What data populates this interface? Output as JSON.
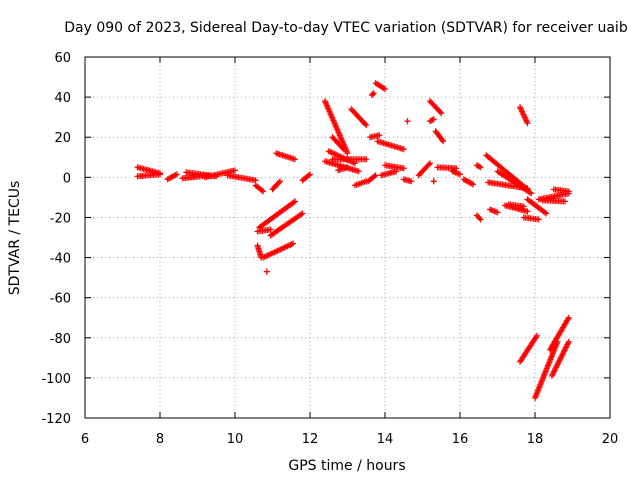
{
  "chart_data": {
    "type": "scatter",
    "title": "Day 090 of 2023, Sidereal Day-to-day VTEC variation (SDTVAR) for receiver uaib",
    "xlabel": "GPS time / hours",
    "ylabel": "SDTVAR / TECUs",
    "xlim": [
      6,
      20
    ],
    "ylim": [
      -120,
      60
    ],
    "xticks": [
      "6",
      "8",
      "10",
      "12",
      "14",
      "16",
      "18",
      "20"
    ],
    "yticks": [
      "60",
      "40",
      "20",
      "0",
      "-20",
      "-40",
      "-60",
      "-80",
      "-100",
      "-120"
    ],
    "grid": true,
    "marker": "+",
    "color": "#ff0000",
    "segments": [
      {
        "x": [
          7.4,
          8.0
        ],
        "y": [
          0.5,
          1.5
        ]
      },
      {
        "x": [
          7.4,
          8.0
        ],
        "y": [
          5.0,
          2.0
        ]
      },
      {
        "x": [
          8.2,
          8.45
        ],
        "y": [
          -1.0,
          1.5
        ]
      },
      {
        "x": [
          8.6,
          9.3
        ],
        "y": [
          -0.5,
          1.0
        ]
      },
      {
        "x": [
          8.7,
          9.5
        ],
        "y": [
          2.5,
          0.5
        ]
      },
      {
        "x": [
          9.2,
          10.0
        ],
        "y": [
          0.0,
          3.5
        ]
      },
      {
        "x": [
          9.8,
          10.55
        ],
        "y": [
          1.0,
          -1.5
        ]
      },
      {
        "x": [
          10.55,
          10.75
        ],
        "y": [
          -4.0,
          -7.0
        ]
      },
      {
        "x": [
          10.6,
          10.95
        ],
        "y": [
          -27.0,
          -26.0
        ]
      },
      {
        "x": [
          10.65,
          11.6
        ],
        "y": [
          -25.0,
          -12.0
        ]
      },
      {
        "x": [
          10.6,
          10.7
        ],
        "y": [
          -34.0,
          -40.0
        ]
      },
      {
        "x": [
          10.75,
          11.55
        ],
        "y": [
          -40.0,
          -33.0
        ]
      },
      {
        "x": [
          10.85,
          10.85
        ],
        "y": [
          -47.0,
          -47.0
        ]
      },
      {
        "x": [
          10.95,
          11.8
        ],
        "y": [
          -29.0,
          -18.0
        ]
      },
      {
        "x": [
          11.0,
          11.2
        ],
        "y": [
          -6.0,
          -2.0
        ]
      },
      {
        "x": [
          11.1,
          11.6
        ],
        "y": [
          12.0,
          9.0
        ]
      },
      {
        "x": [
          11.8,
          12.0
        ],
        "y": [
          -1.5,
          1.5
        ]
      },
      {
        "x": [
          12.4,
          13.0
        ],
        "y": [
          38.0,
          12.0
        ]
      },
      {
        "x": [
          12.4,
          13.3
        ],
        "y": [
          8.0,
          3.0
        ]
      },
      {
        "x": [
          12.5,
          13.2
        ],
        "y": [
          13.0,
          7.0
        ]
      },
      {
        "x": [
          12.6,
          13.5
        ],
        "y": [
          9.0,
          9.0
        ]
      },
      {
        "x": [
          12.75,
          13.0
        ],
        "y": [
          3.5,
          5.0
        ]
      },
      {
        "x": [
          12.6,
          12.9
        ],
        "y": [
          20.0,
          14.0
        ]
      },
      {
        "x": [
          13.1,
          13.5
        ],
        "y": [
          34.0,
          26.0
        ]
      },
      {
        "x": [
          13.2,
          13.5
        ],
        "y": [
          -4.0,
          -2.0
        ]
      },
      {
        "x": [
          13.55,
          13.75
        ],
        "y": [
          -2.0,
          1.0
        ]
      },
      {
        "x": [
          13.65,
          13.7
        ],
        "y": [
          41.0,
          42.0
        ]
      },
      {
        "x": [
          13.75,
          14.0
        ],
        "y": [
          47.0,
          44.0
        ]
      },
      {
        "x": [
          13.6,
          13.85
        ],
        "y": [
          20.0,
          21.0
        ]
      },
      {
        "x": [
          13.8,
          14.5
        ],
        "y": [
          18.0,
          14.0
        ]
      },
      {
        "x": [
          13.9,
          14.3
        ],
        "y": [
          1.0,
          3.0
        ]
      },
      {
        "x": [
          14.0,
          14.5
        ],
        "y": [
          6.0,
          4.5
        ]
      },
      {
        "x": [
          14.5,
          14.7
        ],
        "y": [
          -1.0,
          -2.0
        ]
      },
      {
        "x": [
          14.6,
          14.6
        ],
        "y": [
          28.0,
          28.0
        ]
      },
      {
        "x": [
          14.9,
          15.2
        ],
        "y": [
          1.0,
          7.0
        ]
      },
      {
        "x": [
          15.2,
          15.5
        ],
        "y": [
          38.0,
          32.0
        ]
      },
      {
        "x": [
          15.35,
          15.55
        ],
        "y": [
          23.0,
          18.0
        ]
      },
      {
        "x": [
          15.2,
          15.3
        ],
        "y": [
          28.0,
          29.0
        ]
      },
      {
        "x": [
          15.3,
          15.3
        ],
        "y": [
          -2.0,
          -2.0
        ]
      },
      {
        "x": [
          15.4,
          15.9
        ],
        "y": [
          5.0,
          4.5
        ]
      },
      {
        "x": [
          15.8,
          16.0
        ],
        "y": [
          3.0,
          1.5
        ]
      },
      {
        "x": [
          16.1,
          16.35
        ],
        "y": [
          -1.0,
          -3.5
        ]
      },
      {
        "x": [
          16.45,
          16.55
        ],
        "y": [
          6.0,
          5.0
        ]
      },
      {
        "x": [
          16.45,
          16.55
        ],
        "y": [
          -19.0,
          -21.0
        ]
      },
      {
        "x": [
          16.7,
          17.8
        ],
        "y": [
          11.0,
          -6.0
        ]
      },
      {
        "x": [
          16.75,
          17.8
        ],
        "y": [
          -2.5,
          -5.5
        ]
      },
      {
        "x": [
          16.8,
          17.0
        ],
        "y": [
          -16.0,
          -17.5
        ]
      },
      {
        "x": [
          17.0,
          17.9
        ],
        "y": [
          3.0,
          -8.0
        ]
      },
      {
        "x": [
          17.2,
          17.8
        ],
        "y": [
          -14.0,
          -17.0
        ]
      },
      {
        "x": [
          17.3,
          17.7
        ],
        "y": [
          -13.5,
          -14.5
        ]
      },
      {
        "x": [
          17.6,
          17.8
        ],
        "y": [
          35.0,
          27.0
        ]
      },
      {
        "x": [
          17.6,
          18.05
        ],
        "y": [
          -92.0,
          -79.0
        ]
      },
      {
        "x": [
          17.7,
          18.1
        ],
        "y": [
          -20.0,
          -21.0
        ]
      },
      {
        "x": [
          17.8,
          18.3
        ],
        "y": [
          -11.0,
          -18.0
        ]
      },
      {
        "x": [
          18.0,
          18.6
        ],
        "y": [
          -110.0,
          -82.0
        ]
      },
      {
        "x": [
          18.1,
          18.9
        ],
        "y": [
          -11.0,
          -8.0
        ]
      },
      {
        "x": [
          18.2,
          18.8
        ],
        "y": [
          -11.5,
          -12.0
        ]
      },
      {
        "x": [
          18.4,
          18.9
        ],
        "y": [
          -86.0,
          -70.0
        ]
      },
      {
        "x": [
          18.5,
          18.9
        ],
        "y": [
          -6.0,
          -7.0
        ]
      },
      {
        "x": [
          18.45,
          18.9
        ],
        "y": [
          -99.0,
          -82.0
        ]
      }
    ]
  }
}
